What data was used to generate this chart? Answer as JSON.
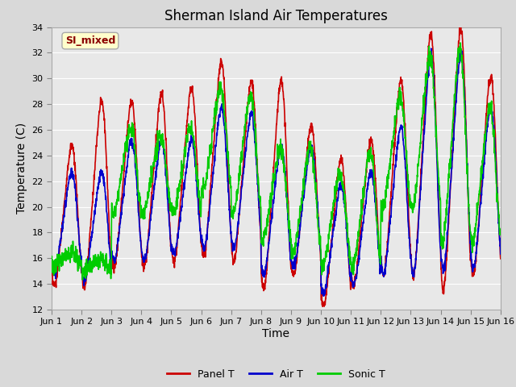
{
  "title": "Sherman Island Air Temperatures",
  "xlabel": "Time",
  "ylabel": "Temperature (C)",
  "ylim": [
    12,
    34
  ],
  "xlim": [
    0,
    15
  ],
  "annotation": "SI_mixed",
  "fig_width": 6.4,
  "fig_height": 4.8,
  "dpi": 100,
  "background_color": "#d9d9d9",
  "plot_bg_color": "#e8e8e8",
  "grid_color": "white",
  "panel_color": "#cc0000",
  "air_color": "#0000cc",
  "sonic_color": "#00cc00",
  "panel_label": "Panel T",
  "air_label": "Air T",
  "sonic_label": "Sonic T",
  "linewidth": 1.2,
  "xtick_labels": [
    "Jun 1",
    "Jun 2",
    "Jun 3",
    "Jun 4",
    "Jun 5",
    "Jun 6",
    "Jun 7",
    "Jun 8",
    "Jun 9",
    "Jun 10",
    "Jun 11",
    "Jun 12",
    "Jun 13",
    "Jun 14",
    "Jun 15",
    "Jun 16"
  ],
  "xtick_positions": [
    0,
    1,
    2,
    3,
    4,
    5,
    6,
    7,
    8,
    9,
    10,
    11,
    12,
    13,
    14,
    15
  ],
  "ytick_positions": [
    12,
    14,
    16,
    18,
    20,
    22,
    24,
    26,
    28,
    30,
    32,
    34
  ],
  "title_fontsize": 12,
  "axis_label_fontsize": 10,
  "tick_fontsize": 8,
  "legend_fontsize": 9
}
